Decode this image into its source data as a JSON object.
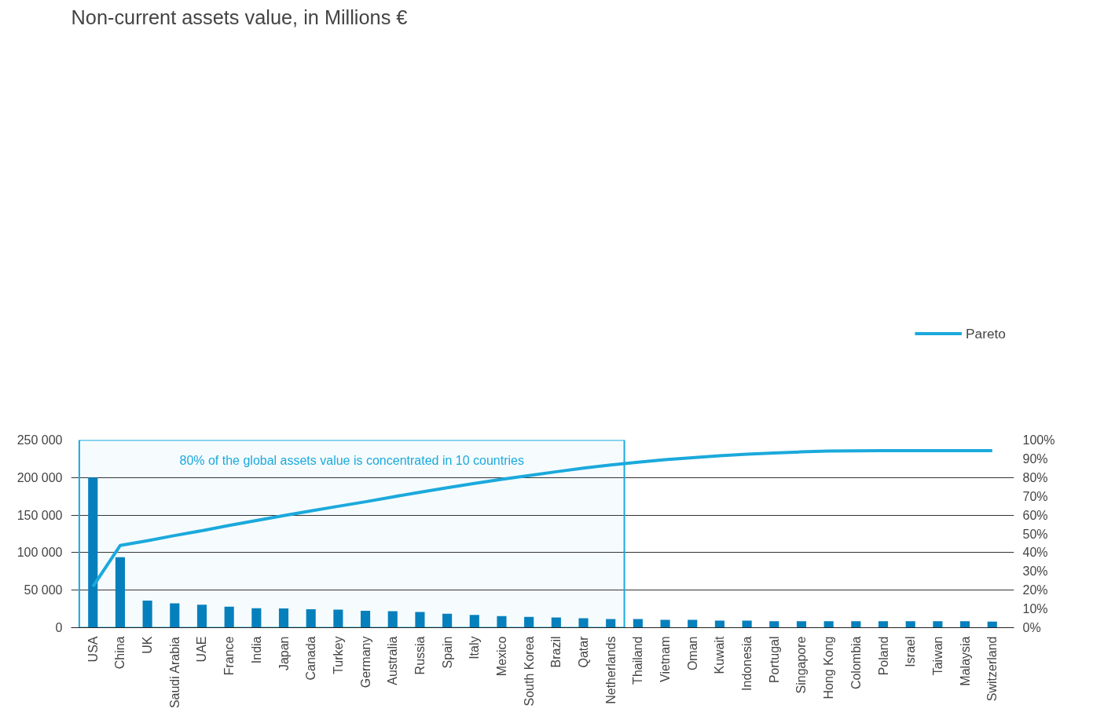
{
  "chart_data": {
    "type": "bar",
    "title": "Non-current assets value, in Millions €",
    "categories": [
      "USA",
      "China",
      "UK",
      "Saudi Arabia",
      "UAE",
      "France",
      "India",
      "Japan",
      "Canada",
      "Turkey",
      "Germany",
      "Australia",
      "Russia",
      "Spain",
      "Italy",
      "Mexico",
      "South Korea",
      "Brazil",
      "Qatar",
      "Netherlands",
      "Thailand",
      "Vietnam",
      "Oman",
      "Kuwait",
      "Indonesia",
      "Portugal",
      "Singapore",
      "Hong Kong",
      "Colombia",
      "Poland",
      "Israel",
      "Taiwan",
      "Malaysia",
      "Switzerland"
    ],
    "series": [
      {
        "color": "#0680bd",
        "values": [
          200000,
          94000,
          36000,
          32500,
          30500,
          28000,
          26000,
          25500,
          24500,
          24000,
          22500,
          22000,
          21000,
          18500,
          17000,
          15500,
          14500,
          13500,
          12500,
          11500,
          11500,
          10500,
          10500,
          9500,
          9500,
          8500,
          8500,
          8500,
          8500,
          8500,
          8500,
          8500,
          8500,
          8000
        ]
      },
      {
        "type": "line",
        "name": "Pareto",
        "color": "#1ba9dc",
        "axis": "y2",
        "values": [
          21.9,
          43.8,
          46.3,
          49.1,
          51.7,
          54.5,
          57.1,
          59.7,
          62.2,
          64.7,
          67.1,
          69.7,
          72.2,
          74.6,
          76.9,
          79.1,
          81.1,
          83.1,
          85.0,
          86.7,
          88.2,
          89.5,
          90.6,
          91.6,
          92.5,
          93.1,
          93.7,
          94.1,
          94.2,
          94.4,
          94.4,
          94.4,
          94.3,
          94.4
        ]
      }
    ],
    "ylim": [
      0,
      250000
    ],
    "yticks": [
      0,
      {
        "value": 50000,
        "label": "50 000"
      },
      {
        "value": 100000,
        "label": "100 000"
      },
      {
        "value": 150000,
        "label": "150 000"
      },
      {
        "value": 200000,
        "label": "200 000"
      },
      {
        "value": 250000,
        "label": "250 000"
      }
    ],
    "y2lim": [
      0,
      100
    ],
    "y2ticks": [
      {
        "value": 0,
        "label": "0%"
      },
      {
        "value": 10,
        "label": "10%"
      },
      {
        "value": 20,
        "label": "20%"
      },
      {
        "value": 30,
        "label": "30%"
      },
      {
        "value": 40,
        "label": "40%"
      },
      {
        "value": 50,
        "label": "50%"
      },
      {
        "value": 60,
        "label": "60%"
      },
      {
        "value": 70,
        "label": "70%"
      },
      {
        "value": 80,
        "label": "80%"
      },
      {
        "value": 90,
        "label": "90%"
      },
      {
        "value": 100,
        "label": "100%"
      }
    ],
    "bands": [
      {
        "axis": "x",
        "from": "USA",
        "to": "Netherlands",
        "label": "80% of the global assets value is concentrated in 10 countries",
        "color": "#1ba9dc"
      }
    ],
    "grid": "y",
    "legend": "top right",
    "marker": "none",
    "line_style": "solid"
  }
}
